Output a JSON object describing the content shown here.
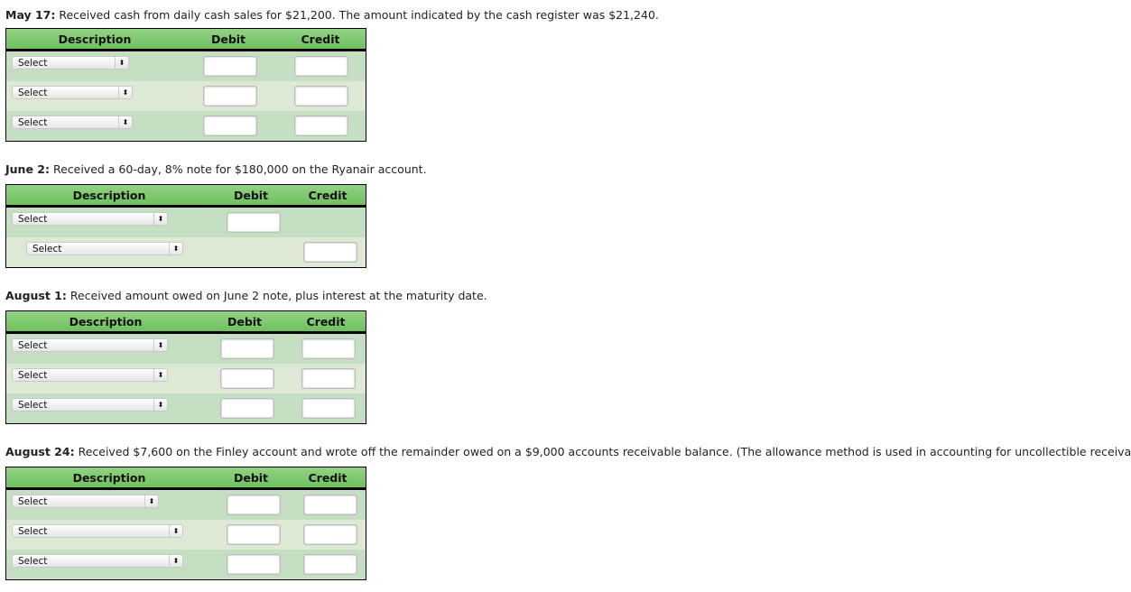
{
  "q1": {
    "date": "May 17:",
    "text": " Received cash from daily cash sales for $21,200. The amount indicated by the cash register was $21,240."
  },
  "q2": {
    "date": "June 2:",
    "text": " Received a 60-day, 8% note for $180,000 on the Ryanair account."
  },
  "q3": {
    "date": "August 1:",
    "text": " Received amount owed on June 2 note, plus interest at the maturity date."
  },
  "q4": {
    "date": "August 24:",
    "text": " Received $7,600 on the Finley account and wrote off the remainder owed on a $9,000 accounts receivable balance. (The allowance method is used in accounting for uncollectible receivables.)"
  },
  "headers": {
    "description": "Description",
    "debit": "Debit",
    "credit": "Credit"
  },
  "select_label": "Select",
  "arrow": "⬍",
  "colors": {
    "header": "#7ec86e",
    "row": "#c5dfc2",
    "row_alt": "#dde9d4"
  }
}
